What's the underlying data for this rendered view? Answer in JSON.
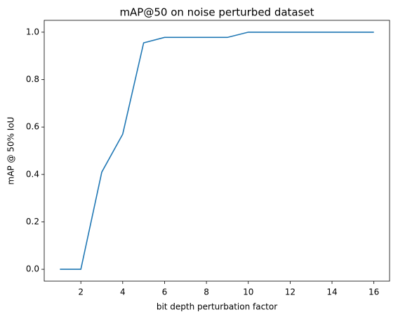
{
  "chart_data": {
    "type": "line",
    "title": "mAP@50 on noise perturbed dataset",
    "x_label": "bit depth perturbation factor",
    "y_label": "mAP @ 50% IoU",
    "x": [
      1,
      2,
      3,
      4,
      5,
      6,
      7,
      8,
      9,
      10,
      11,
      12,
      13,
      14,
      15,
      16
    ],
    "series": [
      {
        "name": "mAP@50",
        "color": "#1f77b4",
        "values": [
          0,
          0,
          0.41,
          0.57,
          0.955,
          0.978,
          0.978,
          0.978,
          0.978,
          1.0,
          1.0,
          1.0,
          1.0,
          1.0,
          1.0,
          1.0
        ]
      }
    ],
    "xlim": [
      0.25,
      16.75
    ],
    "ylim": [
      -0.05,
      1.05
    ],
    "xticks": [
      2,
      4,
      6,
      8,
      10,
      12,
      14,
      16
    ],
    "yticks": [
      {
        "value": 0,
        "label": "0.0"
      },
      0.2,
      0.4,
      0.6,
      0.8,
      {
        "value": 1,
        "label": "1.0"
      }
    ]
  }
}
